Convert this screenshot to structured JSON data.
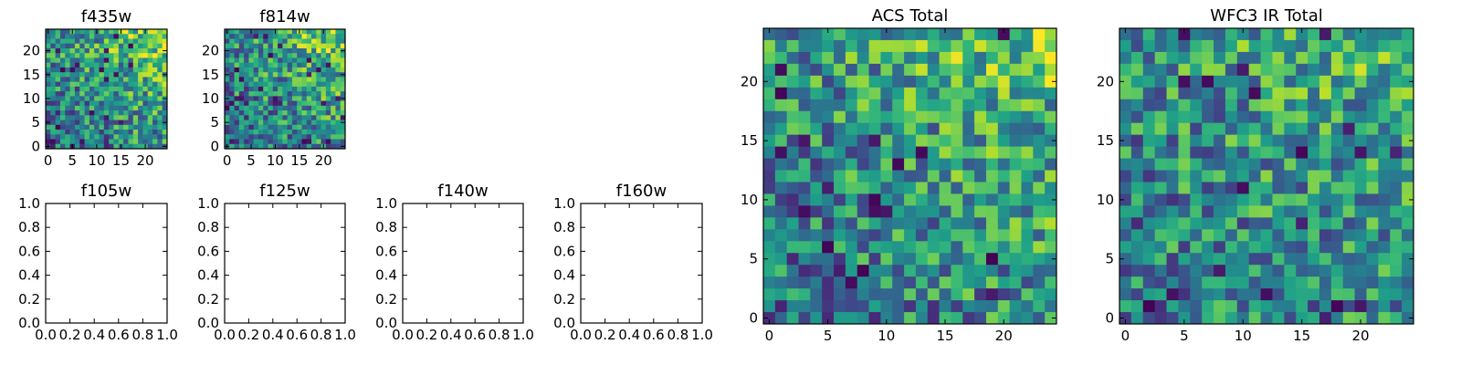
{
  "chart_data": [
    {
      "type": "heatmap",
      "title": "f435w",
      "grid_size": 25,
      "xlim": [
        -0.5,
        24.5
      ],
      "ylim": [
        -0.5,
        24.5
      ],
      "xticks": [
        0,
        5,
        10,
        15,
        20
      ],
      "yticks": [
        0,
        5,
        10,
        15,
        20
      ],
      "colormap": "viridis",
      "seed": 11,
      "gradient": 0.55
    },
    {
      "type": "heatmap",
      "title": "f814w",
      "grid_size": 25,
      "xlim": [
        -0.5,
        24.5
      ],
      "ylim": [
        -0.5,
        24.5
      ],
      "xticks": [
        0,
        5,
        10,
        15,
        20
      ],
      "yticks": [
        0,
        5,
        10,
        15,
        20
      ],
      "colormap": "viridis",
      "seed": 23,
      "gradient": 0.5
    },
    {
      "type": "heatmap",
      "title": "f105w",
      "empty": true,
      "xlim": [
        0,
        1
      ],
      "ylim": [
        0,
        1
      ],
      "xticks": [
        "0.0",
        "0.2",
        "0.4",
        "0.6",
        "0.8",
        "1.0"
      ],
      "yticks": [
        "0.0",
        "0.2",
        "0.4",
        "0.6",
        "0.8",
        "1.0"
      ]
    },
    {
      "type": "heatmap",
      "title": "f125w",
      "empty": true,
      "xlim": [
        0,
        1
      ],
      "ylim": [
        0,
        1
      ],
      "xticks": [
        "0.0",
        "0.2",
        "0.4",
        "0.6",
        "0.8",
        "1.0"
      ],
      "yticks": [
        "0.0",
        "0.2",
        "0.4",
        "0.6",
        "0.8",
        "1.0"
      ]
    },
    {
      "type": "heatmap",
      "title": "f140w",
      "empty": true,
      "xlim": [
        0,
        1
      ],
      "ylim": [
        0,
        1
      ],
      "xticks": [
        "0.0",
        "0.2",
        "0.4",
        "0.6",
        "0.8",
        "1.0"
      ],
      "yticks": [
        "0.0",
        "0.2",
        "0.4",
        "0.6",
        "0.8",
        "1.0"
      ]
    },
    {
      "type": "heatmap",
      "title": "f160w",
      "empty": true,
      "xlim": [
        0,
        1
      ],
      "ylim": [
        0,
        1
      ],
      "xticks": [
        "0.0",
        "0.2",
        "0.4",
        "0.6",
        "0.8",
        "1.0"
      ],
      "yticks": [
        "0.0",
        "0.2",
        "0.4",
        "0.6",
        "0.8",
        "1.0"
      ]
    },
    {
      "type": "heatmap",
      "title": "ACS Total",
      "grid_size": 25,
      "xlim": [
        -0.5,
        24.5
      ],
      "ylim": [
        -0.5,
        24.5
      ],
      "xticks": [
        0,
        5,
        10,
        15,
        20
      ],
      "yticks": [
        0,
        5,
        10,
        15,
        20
      ],
      "colormap": "viridis",
      "seed": 37,
      "gradient": 0.45
    },
    {
      "type": "heatmap",
      "title": "WFC3 IR Total",
      "grid_size": 25,
      "xlim": [
        -0.5,
        24.5
      ],
      "ylim": [
        -0.5,
        24.5
      ],
      "xticks": [
        0,
        5,
        10,
        15,
        20
      ],
      "yticks": [
        0,
        5,
        10,
        15,
        20
      ],
      "colormap": "viridis",
      "seed": 53,
      "gradient": 0.35
    }
  ]
}
